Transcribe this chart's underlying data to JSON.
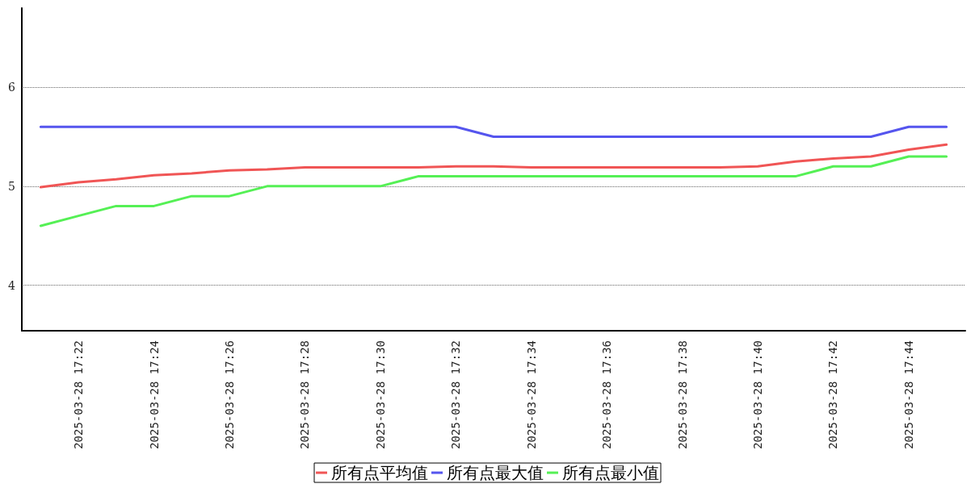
{
  "chart_data": {
    "type": "line",
    "categories": [
      null,
      "2025-03-28 17:22",
      null,
      "2025-03-28 17:24",
      null,
      "2025-03-28 17:26",
      null,
      "2025-03-28 17:28",
      null,
      "2025-03-28 17:30",
      null,
      "2025-03-28 17:32",
      null,
      "2025-03-28 17:34",
      null,
      "2025-03-28 17:36",
      null,
      "2025-03-28 17:38",
      null,
      "2025-03-28 17:40",
      null,
      "2025-03-28 17:42",
      null,
      "2025-03-28 17:44",
      null
    ],
    "series": [
      {
        "name": "所有点平均值",
        "color": "#f05555",
        "values": [
          4.99,
          5.04,
          5.07,
          5.11,
          5.13,
          5.16,
          5.17,
          5.19,
          5.19,
          5.19,
          5.19,
          5.2,
          5.2,
          5.19,
          5.19,
          5.19,
          5.19,
          5.19,
          5.19,
          5.2,
          5.25,
          5.28,
          5.3,
          5.37,
          5.42
        ]
      },
      {
        "name": "所有点最大值",
        "color": "#5555ee",
        "values": [
          5.6,
          5.6,
          5.6,
          5.6,
          5.6,
          5.6,
          5.6,
          5.6,
          5.6,
          5.6,
          5.6,
          5.6,
          5.5,
          5.5,
          5.5,
          5.5,
          5.5,
          5.5,
          5.5,
          5.5,
          5.5,
          5.5,
          5.5,
          5.6,
          5.6
        ]
      },
      {
        "name": "所有点最小值",
        "color": "#55f055",
        "values": [
          4.6,
          4.7,
          4.8,
          4.8,
          4.9,
          4.9,
          5.0,
          5.0,
          5.0,
          5.0,
          5.1,
          5.1,
          5.1,
          5.1,
          5.1,
          5.1,
          5.1,
          5.1,
          5.1,
          5.1,
          5.1,
          5.2,
          5.2,
          5.3,
          5.3
        ]
      }
    ],
    "ylim": [
      3.54,
      6.8
    ],
    "yticks": [
      4,
      5,
      6
    ],
    "grid": "y",
    "legend": "bottom",
    "marker": "none",
    "line_style": "solid"
  }
}
